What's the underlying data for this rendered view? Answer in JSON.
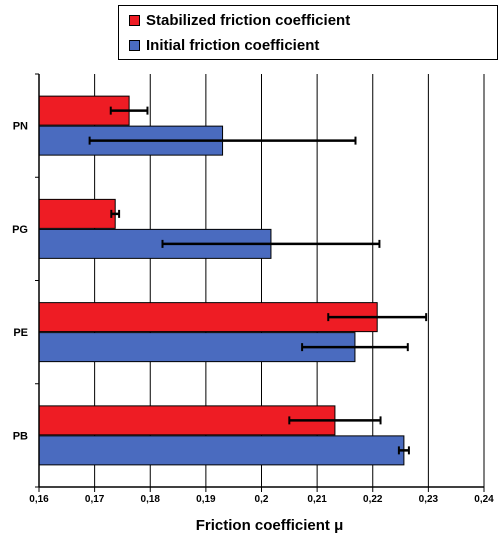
{
  "chart_data": {
    "type": "bar",
    "orientation": "horizontal",
    "categories": [
      "PN",
      "PG",
      "PE",
      "PB"
    ],
    "series": [
      {
        "name": "Stabilized friction coefficient",
        "color": "#ee1c24",
        "values": [
          0.1762,
          0.1737,
          0.2208,
          0.2132
        ],
        "error": [
          0.0033,
          0.0007,
          0.0088,
          0.0082
        ]
      },
      {
        "name": "Initial friction coefficient",
        "color": "#4a6bbf",
        "values": [
          0.193,
          0.2017,
          0.2168,
          0.2256
        ],
        "error": [
          0.0239,
          0.0195,
          0.0095,
          0.0009
        ]
      }
    ],
    "xlim": [
      0.16,
      0.24
    ],
    "xticks": [
      "0,16",
      "0,17",
      "0,18",
      "0,19",
      "0,2",
      "0,21",
      "0,22",
      "0,23",
      "0,24"
    ],
    "xtick_values": [
      0.16,
      0.17,
      0.18,
      0.19,
      0.2,
      0.21,
      0.22,
      0.23,
      0.24
    ],
    "xlabel": "Friction coefficient μ",
    "ylabel": "",
    "grid": "vertical",
    "legend_position": "top"
  }
}
